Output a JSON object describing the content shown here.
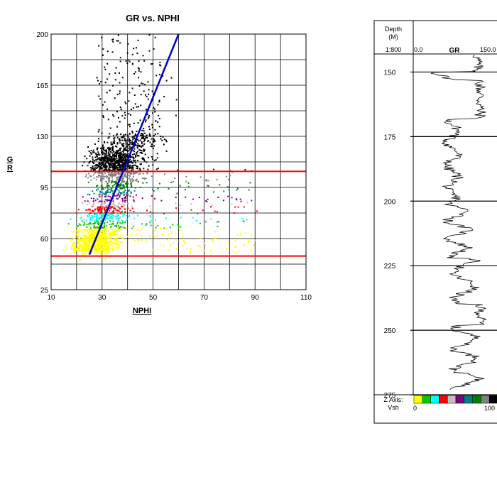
{
  "chart_data": [
    {
      "type": "scatter",
      "title": "GR vs. NPHI",
      "xlabel": "NPHI",
      "ylabel": "G\nR",
      "xlim": [
        10,
        110
      ],
      "ylim": [
        25,
        200
      ],
      "x_ticks": [
        10,
        30,
        50,
        70,
        90,
        110
      ],
      "y_ticks": [
        25,
        60,
        95,
        130,
        165,
        200
      ],
      "grid": true,
      "cutoff_lines": [
        {
          "name": "shale_cutoff",
          "y": 106,
          "color": "#ff0000"
        },
        {
          "name": "sand_cutoff",
          "y": 48,
          "color": "#ff0000"
        }
      ],
      "trend_line": {
        "color": "#0000cc",
        "x": [
          25,
          60
        ],
        "y": [
          49,
          200
        ]
      },
      "z_color_bins": [
        {
          "vsh_range": [
            90,
            100
          ],
          "color": "#000000",
          "gr_range": [
            106,
            200
          ]
        },
        {
          "vsh_range": [
            80,
            90
          ],
          "color": "#808080",
          "gr_range": [
            99,
            106
          ]
        },
        {
          "vsh_range": [
            70,
            80
          ],
          "color": "#008000",
          "gr_range": [
            94,
            99
          ]
        },
        {
          "vsh_range": [
            60,
            70
          ],
          "color": "#008080",
          "gr_range": [
            90,
            94
          ]
        },
        {
          "vsh_range": [
            50,
            60
          ],
          "color": "#800080",
          "gr_range": [
            85,
            90
          ]
        },
        {
          "vsh_range": [
            40,
            50
          ],
          "color": "#c0c0c0",
          "gr_range": [
            82,
            85
          ]
        },
        {
          "vsh_range": [
            30,
            40
          ],
          "color": "#ff0000",
          "gr_range": [
            77,
            82
          ]
        },
        {
          "vsh_range": [
            20,
            30
          ],
          "color": "#00ffff",
          "gr_range": [
            72,
            77
          ]
        },
        {
          "vsh_range": [
            10,
            20
          ],
          "color": "#00cc00",
          "gr_range": [
            67,
            72
          ]
        },
        {
          "vsh_range": [
            0,
            10
          ],
          "color": "#ffff00",
          "gr_range": [
            25,
            67
          ]
        }
      ]
    },
    {
      "type": "line",
      "depth_header": "Depth\n(M)",
      "scale_label": "1:800",
      "curve_label": "GR",
      "curve_min_label": "0.0",
      "curve_max_label": "150.0",
      "depth_ticks": [
        150,
        175,
        200,
        225,
        250,
        275
      ],
      "depth_range": [
        143,
        275
      ],
      "gr_range": [
        0,
        150
      ],
      "z_axis_label": "Z Axis:\nVsh",
      "z_axis_min": "0",
      "z_axis_max": "100",
      "z_axis_colors": [
        "#ffff00",
        "#00cc00",
        "#00ffff",
        "#ff0000",
        "#c0c0c0",
        "#800080",
        "#008080",
        "#008000",
        "#808080",
        "#000000"
      ]
    }
  ]
}
